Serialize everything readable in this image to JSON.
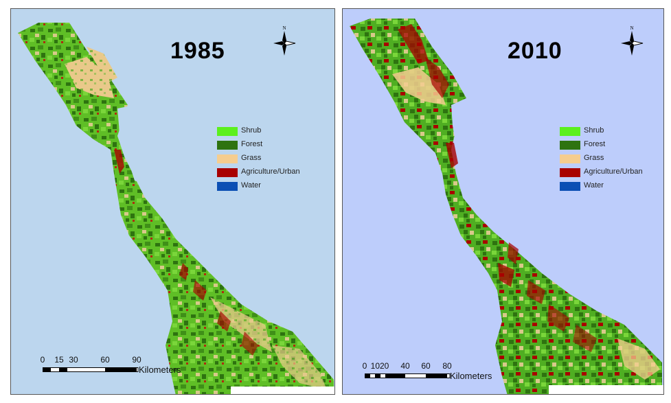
{
  "legend_items": [
    {
      "label": "Shrub",
      "color": "#5cf01d"
    },
    {
      "label": "Forest",
      "color": "#2e7310"
    },
    {
      "label": "Grass",
      "color": "#f5cd8f"
    },
    {
      "label": "Agriculture/Urban",
      "color": "#a80000"
    },
    {
      "label": "Water",
      "color": "#0b4fb4"
    }
  ],
  "panels": [
    {
      "year": "1985",
      "ocean_color": "#bcd6ee",
      "scale_ticks": [
        "0",
        "15",
        "30",
        "60",
        "90"
      ],
      "scale_unit": "Kilometers",
      "north_label": "N"
    },
    {
      "year": "2010",
      "ocean_color": "#bdcdfb",
      "scale_ticks": [
        "0",
        "1020",
        "40",
        "60",
        "80"
      ],
      "scale_unit": "Kilometers",
      "north_label": "N"
    }
  ]
}
